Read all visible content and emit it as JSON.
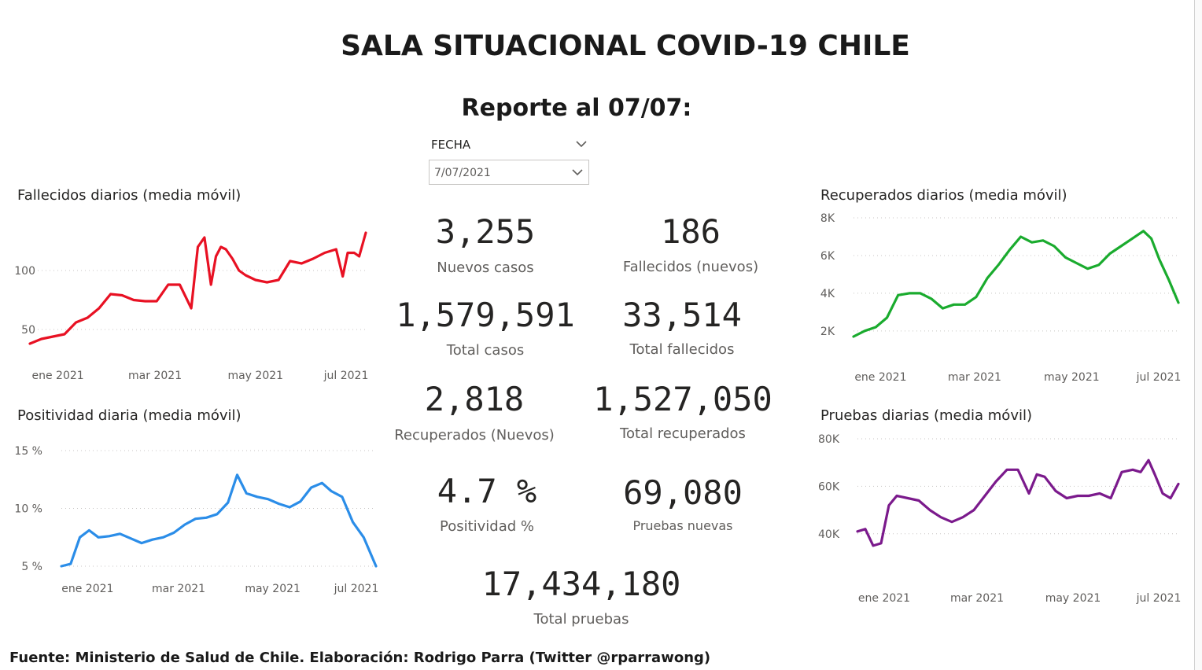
{
  "header": {
    "title": "SALA SITUACIONAL COVID-19 CHILE",
    "subtitle": "Reporte al 07/07:"
  },
  "slicer": {
    "label": "FECHA",
    "value": "7/07/2021",
    "icon": "chevron-down-icon"
  },
  "kpis": {
    "nuevos_casos": {
      "value": "3,255",
      "label": "Nuevos casos"
    },
    "fallecidos_nuevos": {
      "value": "186",
      "label": "Fallecidos (nuevos)"
    },
    "total_casos": {
      "value": "1,579,591",
      "label": "Total casos"
    },
    "total_fallecidos": {
      "value": "33,514",
      "label": "Total fallecidos"
    },
    "recuperados_nuevos": {
      "value": "2,818",
      "label": "Recuperados (Nuevos)"
    },
    "total_recuperados": {
      "value": "1,527,050",
      "label": "Total recuperados"
    },
    "positividad": {
      "value": "4.7 %",
      "label": "Positividad %"
    },
    "pruebas_nuevas": {
      "value": "69,080",
      "label": "Pruebas nuevas"
    },
    "total_pruebas": {
      "value": "17,434,180",
      "label": "Total pruebas"
    }
  },
  "footer": "Fuente: Ministerio de Salud de Chile. Elaboración: Rodrigo Parra (Twitter @rparrawong)",
  "chart_data": [
    {
      "id": "fallecidos",
      "type": "line",
      "title": "Fallecidos diarios (media móvil)",
      "color": "#e81123",
      "x_ticks": [
        "ene 2021",
        "mar 2021",
        "may 2021",
        "jul 2021"
      ],
      "y_ticks": [
        {
          "v": 50,
          "label": "50"
        },
        {
          "v": 100,
          "label": "100"
        }
      ],
      "ylim": [
        28,
        140
      ],
      "grid": true,
      "x": [
        "2020-12-15",
        "2020-12-22",
        "2020-12-29",
        "2021-01-05",
        "2021-01-12",
        "2021-01-19",
        "2021-01-26",
        "2021-02-02",
        "2021-02-09",
        "2021-02-16",
        "2021-02-23",
        "2021-03-02",
        "2021-03-09",
        "2021-03-16",
        "2021-03-23",
        "2021-03-27",
        "2021-03-31",
        "2021-04-04",
        "2021-04-07",
        "2021-04-10",
        "2021-04-13",
        "2021-04-17",
        "2021-04-21",
        "2021-04-25",
        "2021-05-01",
        "2021-05-08",
        "2021-05-15",
        "2021-05-22",
        "2021-05-29",
        "2021-06-05",
        "2021-06-12",
        "2021-06-19",
        "2021-06-23",
        "2021-06-26",
        "2021-06-30",
        "2021-07-03",
        "2021-07-07"
      ],
      "y": [
        38,
        42,
        44,
        46,
        56,
        60,
        68,
        80,
        79,
        75,
        74,
        74,
        88,
        88,
        68,
        120,
        128,
        88,
        112,
        120,
        118,
        110,
        100,
        96,
        92,
        90,
        92,
        108,
        106,
        110,
        115,
        118,
        95,
        115,
        115,
        112,
        132
      ]
    },
    {
      "id": "positividad",
      "type": "line",
      "title": "Positividad diaria (media móvil)",
      "color": "#2b8de8",
      "x_ticks": [
        "ene 2021",
        "mar 2021",
        "may 2021",
        "jul 2021"
      ],
      "y_ticks": [
        {
          "v": 5,
          "label": "5 %"
        },
        {
          "v": 10,
          "label": "10 %"
        },
        {
          "v": 15,
          "label": "15 %"
        }
      ],
      "ylim": [
        5,
        15
      ],
      "grid": true,
      "x": [
        "2020-12-15",
        "2020-12-21",
        "2020-12-27",
        "2021-01-02",
        "2021-01-08",
        "2021-01-15",
        "2021-01-22",
        "2021-01-29",
        "2021-02-05",
        "2021-02-12",
        "2021-02-19",
        "2021-02-26",
        "2021-03-05",
        "2021-03-12",
        "2021-03-19",
        "2021-03-26",
        "2021-04-02",
        "2021-04-08",
        "2021-04-14",
        "2021-04-21",
        "2021-04-28",
        "2021-05-05",
        "2021-05-12",
        "2021-05-19",
        "2021-05-26",
        "2021-06-02",
        "2021-06-08",
        "2021-06-15",
        "2021-06-22",
        "2021-06-29",
        "2021-07-07"
      ],
      "y": [
        5.0,
        5.2,
        7.5,
        8.1,
        7.5,
        7.6,
        7.8,
        7.4,
        7.0,
        7.3,
        7.5,
        7.9,
        8.6,
        9.1,
        9.2,
        9.5,
        10.5,
        12.9,
        11.3,
        11.0,
        10.8,
        10.4,
        10.1,
        10.6,
        11.8,
        12.2,
        11.5,
        11.0,
        8.8,
        7.5,
        5.0
      ]
    },
    {
      "id": "recuperados",
      "type": "line",
      "title": "Recuperados diarios (media móvil)",
      "color": "#1aab2e",
      "x_ticks": [
        "ene 2021",
        "mar 2021",
        "may 2021",
        "jul 2021"
      ],
      "y_ticks": [
        {
          "v": 2000,
          "label": "2K"
        },
        {
          "v": 4000,
          "label": "4K"
        },
        {
          "v": 6000,
          "label": "6K"
        },
        {
          "v": 8000,
          "label": "8K"
        }
      ],
      "ylim": [
        1200,
        8000
      ],
      "grid": true,
      "x": [
        "2020-12-15",
        "2020-12-22",
        "2020-12-29",
        "2021-01-05",
        "2021-01-12",
        "2021-01-19",
        "2021-01-26",
        "2021-02-02",
        "2021-02-09",
        "2021-02-16",
        "2021-02-23",
        "2021-03-02",
        "2021-03-09",
        "2021-03-16",
        "2021-03-23",
        "2021-03-30",
        "2021-04-06",
        "2021-04-13",
        "2021-04-20",
        "2021-04-27",
        "2021-05-04",
        "2021-05-11",
        "2021-05-18",
        "2021-05-25",
        "2021-06-01",
        "2021-06-08",
        "2021-06-15",
        "2021-06-20",
        "2021-06-25",
        "2021-07-01",
        "2021-07-07"
      ],
      "y": [
        1700,
        2000,
        2200,
        2700,
        3900,
        4000,
        4000,
        3700,
        3200,
        3400,
        3400,
        3800,
        4800,
        5500,
        6300,
        7000,
        6700,
        6800,
        6500,
        5900,
        5600,
        5300,
        5500,
        6100,
        6500,
        6900,
        7300,
        6900,
        5800,
        4700,
        3500
      ]
    },
    {
      "id": "pruebas",
      "type": "line",
      "title": "Pruebas diarias (media móvil)",
      "color": "#7b1a8c",
      "x_ticks": [
        "ene 2021",
        "mar 2021",
        "may 2021",
        "jul 2021"
      ],
      "y_ticks": [
        {
          "v": 40000,
          "label": "40K"
        },
        {
          "v": 60000,
          "label": "60K"
        },
        {
          "v": 80000,
          "label": "80K"
        }
      ],
      "ylim": [
        30000,
        80000
      ],
      "grid": true,
      "x": [
        "2020-12-15",
        "2020-12-20",
        "2020-12-25",
        "2020-12-30",
        "2021-01-04",
        "2021-01-09",
        "2021-01-16",
        "2021-01-23",
        "2021-01-30",
        "2021-02-06",
        "2021-02-13",
        "2021-02-20",
        "2021-02-27",
        "2021-03-06",
        "2021-03-13",
        "2021-03-20",
        "2021-03-27",
        "2021-04-03",
        "2021-04-08",
        "2021-04-13",
        "2021-04-20",
        "2021-04-27",
        "2021-05-04",
        "2021-05-11",
        "2021-05-18",
        "2021-05-25",
        "2021-06-01",
        "2021-06-08",
        "2021-06-13",
        "2021-06-18",
        "2021-06-22",
        "2021-06-27",
        "2021-07-02",
        "2021-07-07"
      ],
      "y": [
        41000,
        42000,
        35000,
        36000,
        52000,
        56000,
        55000,
        54000,
        50000,
        47000,
        45000,
        47000,
        50000,
        56000,
        62000,
        67000,
        67000,
        57000,
        65000,
        64000,
        58000,
        55000,
        56000,
        56000,
        57000,
        55000,
        66000,
        67000,
        66000,
        71000,
        65000,
        57000,
        55000,
        61000
      ]
    }
  ]
}
